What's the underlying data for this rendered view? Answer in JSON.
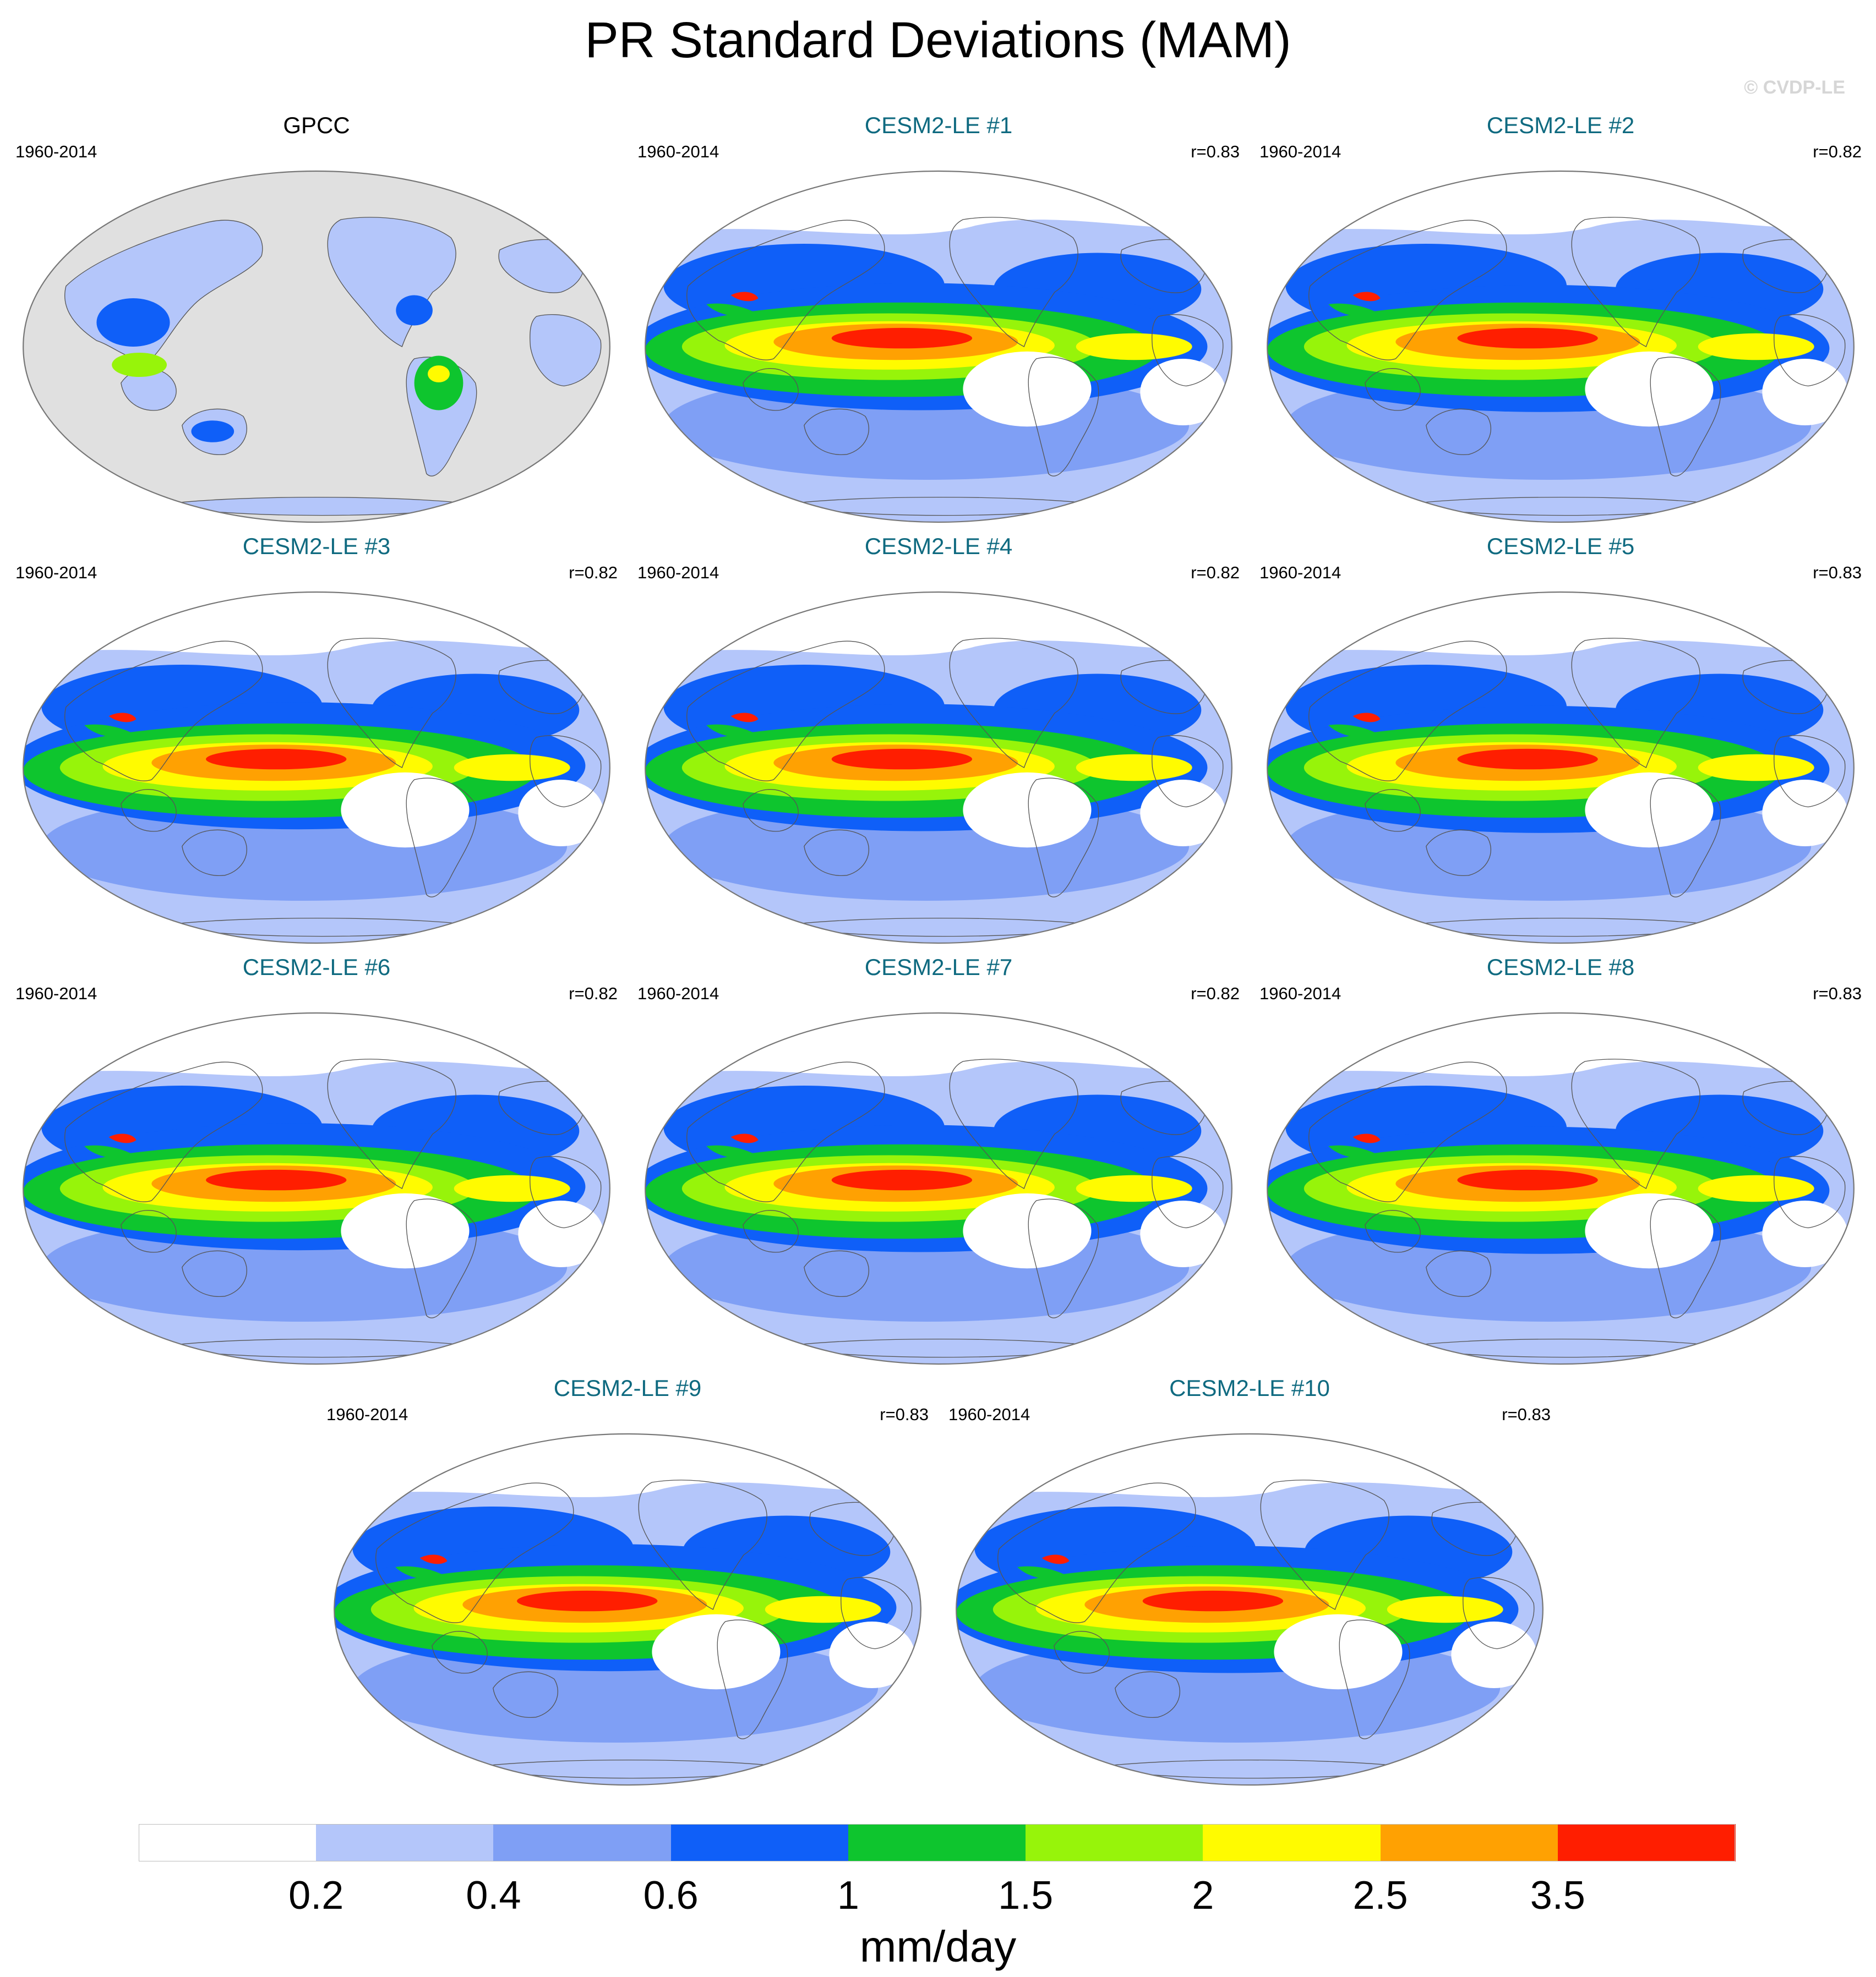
{
  "title": "PR Standard Deviations (MAM)",
  "watermark": "© CVDP-LE",
  "panels": [
    {
      "name": "GPCC",
      "period": "1960-2014",
      "r": "",
      "observational": true
    },
    {
      "name": "CESM2-LE #1",
      "period": "1960-2014",
      "r": "r=0.83"
    },
    {
      "name": "CESM2-LE #2",
      "period": "1960-2014",
      "r": "r=0.82"
    },
    {
      "name": "CESM2-LE #3",
      "period": "1960-2014",
      "r": "r=0.82"
    },
    {
      "name": "CESM2-LE #4",
      "period": "1960-2014",
      "r": "r=0.82"
    },
    {
      "name": "CESM2-LE #5",
      "period": "1960-2014",
      "r": "r=0.83"
    },
    {
      "name": "CESM2-LE #6",
      "period": "1960-2014",
      "r": "r=0.82"
    },
    {
      "name": "CESM2-LE #7",
      "period": "1960-2014",
      "r": "r=0.82"
    },
    {
      "name": "CESM2-LE #8",
      "period": "1960-2014",
      "r": "r=0.83"
    },
    {
      "name": "CESM2-LE #9",
      "period": "1960-2014",
      "r": "r=0.83"
    },
    {
      "name": "CESM2-LE #10",
      "period": "1960-2014",
      "r": "r=0.83"
    }
  ],
  "colorbar": {
    "colors": [
      "#ffffff",
      "#b4c6fa",
      "#7f9ff5",
      "#0f5ff8",
      "#0ec52e",
      "#97f40a",
      "#fffb00",
      "#ffa102",
      "#ff1e00"
    ],
    "tick_labels": [
      "0.2",
      "0.4",
      "0.6",
      "1",
      "1.5",
      "2",
      "2.5",
      "3.5"
    ],
    "units": "mm/day"
  },
  "map_colors": {
    "land_mask": "#e0e0e0",
    "coastline": "#555555"
  }
}
